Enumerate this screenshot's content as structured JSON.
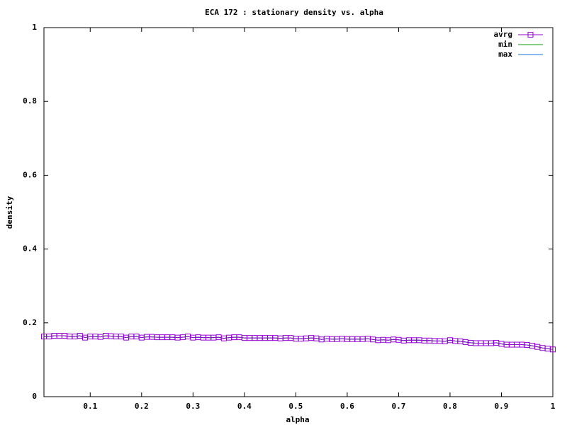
{
  "chart_data": {
    "type": "line",
    "title": "ECA 172 : stationary density vs. alpha",
    "xlabel": "alpha",
    "ylabel": "density",
    "x": [
      0.01,
      0.02,
      0.03,
      0.04,
      0.05,
      0.06,
      0.07,
      0.08,
      0.09,
      0.1,
      0.11,
      0.12,
      0.13,
      0.14,
      0.15,
      0.16,
      0.17,
      0.18,
      0.19,
      0.2,
      0.21,
      0.22,
      0.23,
      0.24,
      0.25,
      0.26,
      0.27,
      0.28,
      0.29,
      0.3,
      0.31,
      0.32,
      0.33,
      0.34,
      0.35,
      0.36,
      0.37,
      0.38,
      0.39,
      0.4,
      0.41,
      0.42,
      0.43,
      0.44,
      0.45,
      0.46,
      0.47,
      0.48,
      0.49,
      0.5,
      0.51,
      0.52,
      0.53,
      0.54,
      0.55,
      0.56,
      0.57,
      0.58,
      0.59,
      0.6,
      0.61,
      0.62,
      0.63,
      0.64,
      0.65,
      0.66,
      0.67,
      0.68,
      0.69,
      0.7,
      0.71,
      0.72,
      0.73,
      0.74,
      0.75,
      0.76,
      0.77,
      0.78,
      0.79,
      0.8,
      0.81,
      0.82,
      0.83,
      0.84,
      0.85,
      0.86,
      0.87,
      0.88,
      0.89,
      0.9,
      0.91,
      0.92,
      0.93,
      0.94,
      0.95,
      0.96,
      0.97,
      0.98,
      0.99,
      1
    ],
    "series": [
      {
        "name": "avrg",
        "color": "#9400d3",
        "marker": "square",
        "values": [
          0.163,
          0.163,
          0.165,
          0.165,
          0.165,
          0.163,
          0.163,
          0.165,
          0.16,
          0.163,
          0.163,
          0.162,
          0.165,
          0.164,
          0.163,
          0.163,
          0.16,
          0.163,
          0.163,
          0.16,
          0.162,
          0.162,
          0.161,
          0.161,
          0.161,
          0.161,
          0.16,
          0.161,
          0.163,
          0.16,
          0.161,
          0.16,
          0.16,
          0.16,
          0.161,
          0.158,
          0.16,
          0.161,
          0.161,
          0.159,
          0.159,
          0.159,
          0.159,
          0.159,
          0.159,
          0.159,
          0.158,
          0.159,
          0.159,
          0.157,
          0.157,
          0.158,
          0.159,
          0.158,
          0.155,
          0.157,
          0.156,
          0.156,
          0.157,
          0.156,
          0.156,
          0.156,
          0.156,
          0.157,
          0.155,
          0.153,
          0.154,
          0.153,
          0.155,
          0.154,
          0.152,
          0.153,
          0.153,
          0.153,
          0.152,
          0.152,
          0.151,
          0.151,
          0.15,
          0.153,
          0.151,
          0.15,
          0.148,
          0.146,
          0.145,
          0.145,
          0.145,
          0.145,
          0.146,
          0.143,
          0.141,
          0.141,
          0.141,
          0.141,
          0.14,
          0.138,
          0.135,
          0.132,
          0.13,
          0.128
        ]
      },
      {
        "name": "min",
        "color": "#00a000",
        "values": [
          0.163,
          0.163,
          0.165,
          0.165,
          0.165,
          0.163,
          0.163,
          0.165,
          0.16,
          0.163,
          0.163,
          0.162,
          0.165,
          0.164,
          0.163,
          0.163,
          0.16,
          0.163,
          0.163,
          0.16,
          0.162,
          0.162,
          0.161,
          0.161,
          0.161,
          0.161,
          0.16,
          0.161,
          0.163,
          0.16,
          0.161,
          0.16,
          0.16,
          0.16,
          0.161,
          0.158,
          0.16,
          0.161,
          0.161,
          0.159,
          0.159,
          0.159,
          0.159,
          0.159,
          0.159,
          0.159,
          0.158,
          0.159,
          0.159,
          0.157,
          0.157,
          0.158,
          0.159,
          0.158,
          0.155,
          0.157,
          0.156,
          0.156,
          0.157,
          0.156,
          0.156,
          0.156,
          0.156,
          0.157,
          0.155,
          0.153,
          0.154,
          0.153,
          0.155,
          0.154,
          0.152,
          0.153,
          0.153,
          0.153,
          0.152,
          0.152,
          0.151,
          0.151,
          0.15,
          0.153,
          0.151,
          0.15,
          0.148,
          0.146,
          0.145,
          0.145,
          0.145,
          0.145,
          0.146,
          0.143,
          0.141,
          0.141,
          0.141,
          0.141,
          0.14,
          0.138,
          0.135,
          0.132,
          0.13,
          0.128
        ]
      },
      {
        "name": "max",
        "color": "#1070e0",
        "values": [
          0.163,
          0.163,
          0.165,
          0.165,
          0.165,
          0.163,
          0.163,
          0.165,
          0.16,
          0.163,
          0.163,
          0.162,
          0.165,
          0.164,
          0.163,
          0.163,
          0.16,
          0.163,
          0.163,
          0.16,
          0.162,
          0.162,
          0.161,
          0.161,
          0.161,
          0.161,
          0.16,
          0.161,
          0.163,
          0.16,
          0.161,
          0.16,
          0.16,
          0.16,
          0.161,
          0.158,
          0.16,
          0.161,
          0.161,
          0.159,
          0.159,
          0.159,
          0.159,
          0.159,
          0.159,
          0.159,
          0.158,
          0.159,
          0.159,
          0.157,
          0.157,
          0.158,
          0.159,
          0.158,
          0.155,
          0.157,
          0.156,
          0.156,
          0.157,
          0.156,
          0.156,
          0.156,
          0.156,
          0.157,
          0.155,
          0.153,
          0.154,
          0.153,
          0.155,
          0.154,
          0.152,
          0.153,
          0.153,
          0.153,
          0.152,
          0.152,
          0.151,
          0.151,
          0.15,
          0.153,
          0.151,
          0.15,
          0.148,
          0.146,
          0.145,
          0.145,
          0.145,
          0.145,
          0.146,
          0.143,
          0.141,
          0.141,
          0.141,
          0.141,
          0.14,
          0.138,
          0.135,
          0.132,
          0.13,
          0.128
        ]
      }
    ],
    "xlim": [
      0.01,
      1
    ],
    "xticks": [
      0.1,
      0.2,
      0.3,
      0.4,
      0.5,
      0.6,
      0.7,
      0.8,
      0.9,
      1
    ],
    "ylim": [
      0,
      1
    ],
    "yticks": [
      0,
      0.2,
      0.4,
      0.6,
      0.8,
      1
    ],
    "grid": false,
    "legend": "top-right"
  }
}
